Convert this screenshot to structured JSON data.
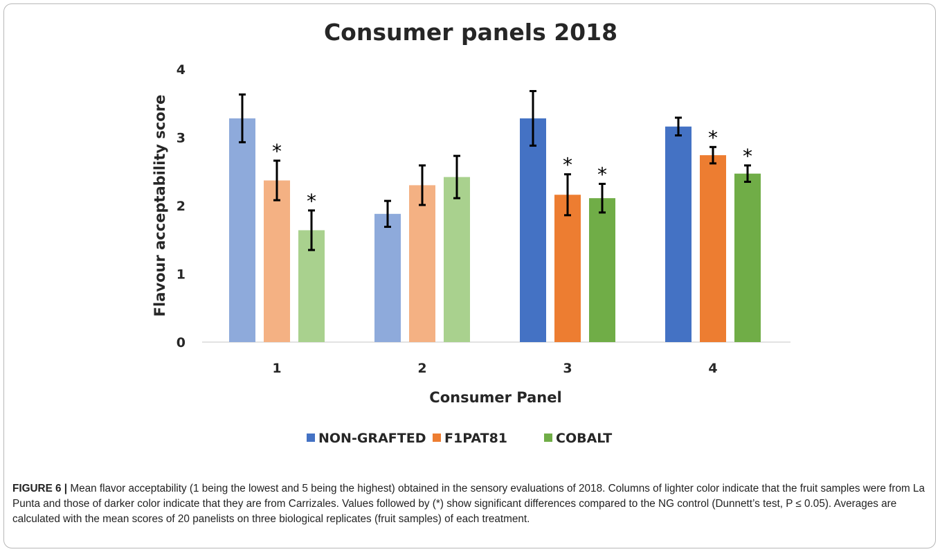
{
  "chart_data": {
    "type": "bar",
    "title": "Consumer panels 2018",
    "xlabel": "Consumer Panel",
    "ylabel": "Flavour acceptability score",
    "ylim": [
      0,
      4
    ],
    "yticks": [
      0,
      1,
      2,
      3,
      4
    ],
    "categories": [
      "1",
      "2",
      "3",
      "4"
    ],
    "series": [
      {
        "name": "NON-GRAFTED",
        "values": [
          3.28,
          1.88,
          3.28,
          3.16
        ],
        "errors": [
          0.35,
          0.19,
          0.4,
          0.13
        ],
        "significant": [
          false,
          false,
          false,
          false
        ],
        "colors": [
          "#8eaadb",
          "#8eaadb",
          "#4472c4",
          "#4472c4"
        ]
      },
      {
        "name": "F1PAT81",
        "values": [
          2.37,
          2.3,
          2.16,
          2.74
        ],
        "errors": [
          0.29,
          0.29,
          0.3,
          0.12
        ],
        "significant": [
          true,
          false,
          true,
          true
        ],
        "colors": [
          "#f4b183",
          "#f4b183",
          "#ed7d31",
          "#ed7d31"
        ]
      },
      {
        "name": "COBALT",
        "values": [
          1.64,
          2.42,
          2.11,
          2.47
        ],
        "errors": [
          0.29,
          0.31,
          0.21,
          0.12
        ],
        "significant": [
          true,
          false,
          true,
          true
        ],
        "colors": [
          "#a9d18e",
          "#a9d18e",
          "#70ad47",
          "#70ad47"
        ]
      }
    ],
    "significance_marker": "*",
    "legend": {
      "position": "bottom",
      "entries": [
        {
          "label": "NON-GRAFTED",
          "color": "#4472c4"
        },
        {
          "label": "F1PAT81",
          "color": "#ed7d31"
        },
        {
          "label": "COBALT",
          "color": "#70ad47"
        }
      ]
    },
    "grid": false
  },
  "caption": {
    "label": "FIGURE 6 |",
    "text": " Mean flavor acceptability (1 being the lowest and 5 being the highest) obtained in the sensory evaluations of 2018. Columns of lighter color indicate that the fruit samples were from La Punta and those of darker color indicate that they are from Carrizales. Values followed by (*) show significant differences compared to the NG control (Dunnett’s test, P ≤ 0.05). Averages are calculated with the mean scores of 20 panelists on three biological replicates (fruit samples) of each treatment."
  }
}
